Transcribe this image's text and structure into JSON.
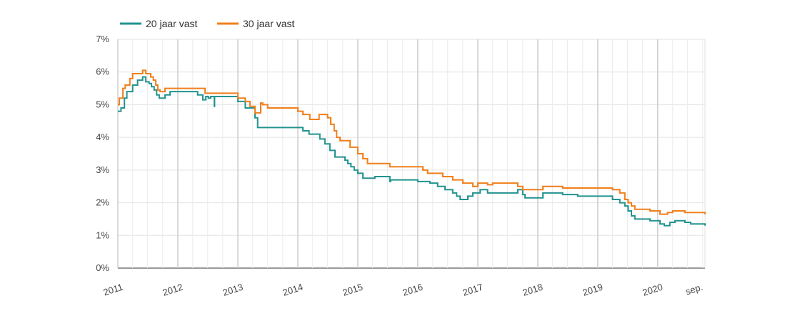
{
  "chart_data": {
    "type": "line",
    "title": "",
    "xlabel": "",
    "ylabel": "",
    "ylim": [
      0,
      7
    ],
    "xlim": [
      "2011-01-01",
      "2020-10-15"
    ],
    "grid": true,
    "legend_position": "top-left",
    "y_ticks": [
      "0%",
      "1%",
      "2%",
      "3%",
      "4%",
      "5%",
      "6%",
      "7%"
    ],
    "y_tick_values": [
      0,
      1,
      2,
      3,
      4,
      5,
      6,
      7
    ],
    "x_ticks": [
      {
        "label": "2011",
        "date": "2011-01-01"
      },
      {
        "label": "2012",
        "date": "2012-01-01"
      },
      {
        "label": "2013",
        "date": "2013-01-01"
      },
      {
        "label": "2014",
        "date": "2014-01-01"
      },
      {
        "label": "2015",
        "date": "2015-01-01"
      },
      {
        "label": "2016",
        "date": "2016-01-01"
      },
      {
        "label": "2017",
        "date": "2017-01-01"
      },
      {
        "label": "2018",
        "date": "2018-01-01"
      },
      {
        "label": "2019",
        "date": "2019-01-01"
      },
      {
        "label": "2020",
        "date": "2020-01-01"
      },
      {
        "label": "sep.",
        "date": "2020-09-01"
      }
    ],
    "series": [
      {
        "name": "20 jaar vast",
        "color": "#23938f",
        "points": [
          [
            "2011-01-01",
            4.8
          ],
          [
            "2011-01-20",
            4.9
          ],
          [
            "2011-02-10",
            5.2
          ],
          [
            "2011-02-25",
            5.4
          ],
          [
            "2011-04-01",
            5.6
          ],
          [
            "2011-05-01",
            5.75
          ],
          [
            "2011-06-01",
            5.85
          ],
          [
            "2011-06-20",
            5.7
          ],
          [
            "2011-07-10",
            5.65
          ],
          [
            "2011-07-25",
            5.55
          ],
          [
            "2011-08-10",
            5.45
          ],
          [
            "2011-08-25",
            5.3
          ],
          [
            "2011-09-10",
            5.2
          ],
          [
            "2011-10-15",
            5.3
          ],
          [
            "2011-11-15",
            5.4
          ],
          [
            "2012-05-01",
            5.3
          ],
          [
            "2012-06-01",
            5.15
          ],
          [
            "2012-06-20",
            5.25
          ],
          [
            "2012-07-05",
            5.2
          ],
          [
            "2012-07-20",
            5.25
          ],
          [
            "2012-08-10",
            4.95
          ],
          [
            "2012-08-12",
            5.25
          ],
          [
            "2013-01-01",
            5.1
          ],
          [
            "2013-02-15",
            4.9
          ],
          [
            "2013-04-15",
            4.6
          ],
          [
            "2013-05-01",
            4.3
          ],
          [
            "2014-02-01",
            4.2
          ],
          [
            "2014-03-10",
            4.1
          ],
          [
            "2014-05-15",
            3.95
          ],
          [
            "2014-06-15",
            3.8
          ],
          [
            "2014-07-15",
            3.6
          ],
          [
            "2014-08-15",
            3.4
          ],
          [
            "2014-10-15",
            3.3
          ],
          [
            "2014-11-01",
            3.2
          ],
          [
            "2014-11-20",
            3.1
          ],
          [
            "2014-12-10",
            3.0
          ],
          [
            "2015-01-01",
            2.9
          ],
          [
            "2015-02-01",
            2.75
          ],
          [
            "2015-04-15",
            2.8
          ],
          [
            "2015-07-15",
            2.65
          ],
          [
            "2015-07-20",
            2.7
          ],
          [
            "2016-01-01",
            2.65
          ],
          [
            "2016-03-15",
            2.6
          ],
          [
            "2016-05-01",
            2.5
          ],
          [
            "2016-06-15",
            2.4
          ],
          [
            "2016-08-01",
            2.3
          ],
          [
            "2016-08-25",
            2.2
          ],
          [
            "2016-09-15",
            2.1
          ],
          [
            "2016-11-01",
            2.2
          ],
          [
            "2016-12-01",
            2.3
          ],
          [
            "2017-01-15",
            2.4
          ],
          [
            "2017-03-01",
            2.3
          ],
          [
            "2017-09-01",
            2.4
          ],
          [
            "2017-10-01",
            2.25
          ],
          [
            "2017-10-15",
            2.15
          ],
          [
            "2018-02-01",
            2.3
          ],
          [
            "2018-06-01",
            2.25
          ],
          [
            "2018-09-01",
            2.2
          ],
          [
            "2019-03-01",
            2.2
          ],
          [
            "2019-04-01",
            2.1
          ],
          [
            "2019-05-15",
            2.0
          ],
          [
            "2019-06-15",
            1.9
          ],
          [
            "2019-07-05",
            1.75
          ],
          [
            "2019-07-25",
            1.6
          ],
          [
            "2019-08-15",
            1.5
          ],
          [
            "2019-11-15",
            1.45
          ],
          [
            "2020-01-15",
            1.35
          ],
          [
            "2020-02-10",
            1.3
          ],
          [
            "2020-03-15",
            1.4
          ],
          [
            "2020-04-15",
            1.45
          ],
          [
            "2020-06-15",
            1.4
          ],
          [
            "2020-07-20",
            1.35
          ],
          [
            "2020-10-15",
            1.3
          ]
        ]
      },
      {
        "name": "30 jaar vast",
        "color": "#f07f1c",
        "points": [
          [
            "2011-01-01",
            5.0
          ],
          [
            "2011-01-10",
            5.2
          ],
          [
            "2011-02-01",
            5.5
          ],
          [
            "2011-02-15",
            5.6
          ],
          [
            "2011-03-15",
            5.8
          ],
          [
            "2011-04-01",
            5.95
          ],
          [
            "2011-06-01",
            6.05
          ],
          [
            "2011-06-20",
            5.95
          ],
          [
            "2011-07-20",
            5.85
          ],
          [
            "2011-08-05",
            5.75
          ],
          [
            "2011-08-20",
            5.6
          ],
          [
            "2011-09-01",
            5.45
          ],
          [
            "2011-09-15",
            5.4
          ],
          [
            "2011-10-15",
            5.5
          ],
          [
            "2012-06-15",
            5.35
          ],
          [
            "2013-01-01",
            5.2
          ],
          [
            "2013-02-15",
            5.1
          ],
          [
            "2013-03-15",
            4.95
          ],
          [
            "2013-04-15",
            4.75
          ],
          [
            "2013-05-20",
            5.05
          ],
          [
            "2013-06-01",
            5.0
          ],
          [
            "2013-07-01",
            4.9
          ],
          [
            "2014-01-01",
            4.8
          ],
          [
            "2014-02-01",
            4.7
          ],
          [
            "2014-03-15",
            4.55
          ],
          [
            "2014-05-10",
            4.7
          ],
          [
            "2014-07-01",
            4.6
          ],
          [
            "2014-07-20",
            4.4
          ],
          [
            "2014-08-10",
            4.2
          ],
          [
            "2014-08-25",
            4.0
          ],
          [
            "2014-09-15",
            3.9
          ],
          [
            "2014-11-15",
            3.7
          ],
          [
            "2015-01-01",
            3.5
          ],
          [
            "2015-02-01",
            3.35
          ],
          [
            "2015-03-01",
            3.2
          ],
          [
            "2015-07-15",
            3.1
          ],
          [
            "2016-02-01",
            3.0
          ],
          [
            "2016-03-01",
            2.9
          ],
          [
            "2016-06-01",
            2.8
          ],
          [
            "2016-08-01",
            2.7
          ],
          [
            "2016-10-01",
            2.6
          ],
          [
            "2016-12-01",
            2.5
          ],
          [
            "2017-01-01",
            2.6
          ],
          [
            "2017-03-01",
            2.55
          ],
          [
            "2017-04-01",
            2.6
          ],
          [
            "2017-09-01",
            2.5
          ],
          [
            "2017-10-01",
            2.4
          ],
          [
            "2018-02-01",
            2.5
          ],
          [
            "2018-06-01",
            2.45
          ],
          [
            "2019-04-01",
            2.4
          ],
          [
            "2019-05-15",
            2.3
          ],
          [
            "2019-06-15",
            2.1
          ],
          [
            "2019-07-05",
            2.0
          ],
          [
            "2019-07-25",
            1.9
          ],
          [
            "2019-08-15",
            1.8
          ],
          [
            "2019-11-15",
            1.75
          ],
          [
            "2020-01-15",
            1.65
          ],
          [
            "2020-03-01",
            1.7
          ],
          [
            "2020-04-01",
            1.75
          ],
          [
            "2020-06-15",
            1.7
          ],
          [
            "2020-08-01",
            1.7
          ],
          [
            "2020-09-01",
            1.7
          ],
          [
            "2020-10-15",
            1.65
          ]
        ]
      }
    ]
  }
}
